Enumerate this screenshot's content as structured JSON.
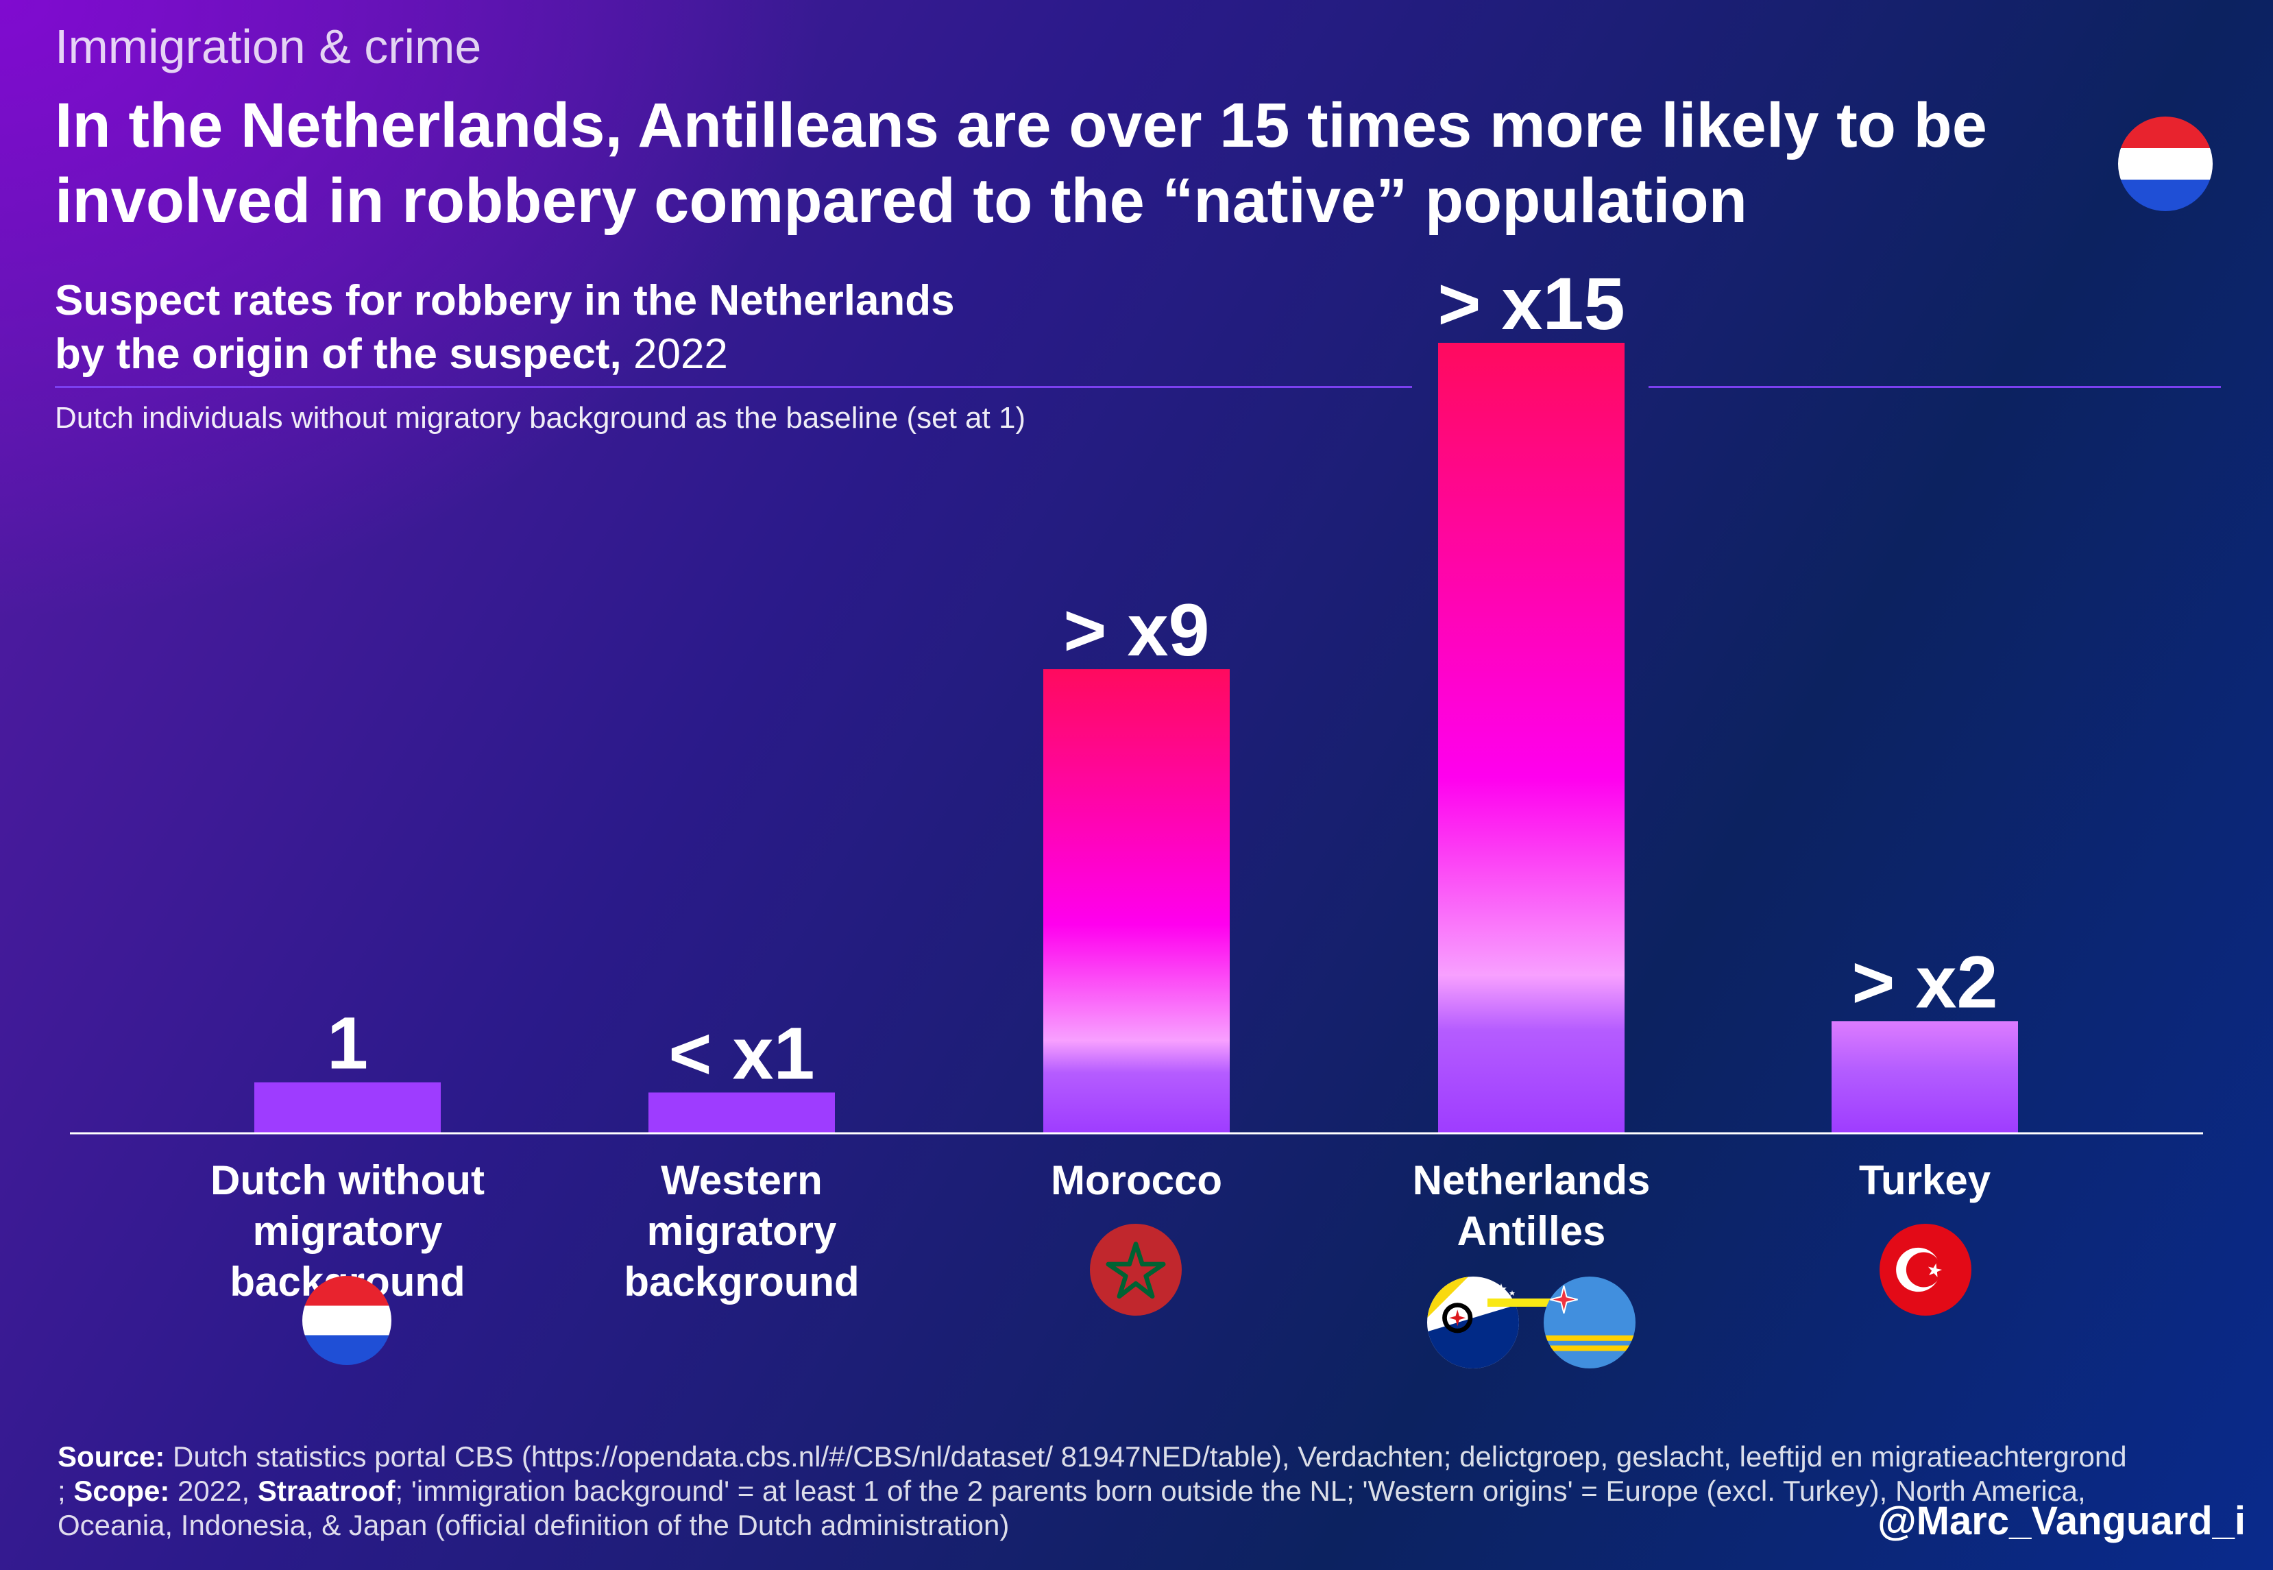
{
  "kicker": "Immigration & crime",
  "headline": {
    "line1": "In the Netherlands, Antilleans are over 15 times more likely to be",
    "line2": "involved in robbery compared to the “native” population"
  },
  "subtitle": {
    "line1": "Suspect rates for robbery in the Netherlands",
    "line2_bold": "by the origin of the suspect,",
    "line2_year": " 2022"
  },
  "baseline_note": "Dutch individuals without migratory background as the baseline (set at 1)",
  "chart_data": {
    "type": "bar",
    "title": "Suspect rates for robbery in the Netherlands by the origin of the suspect, 2022",
    "categories": [
      [
        "Dutch without",
        "migratory background"
      ],
      [
        "Western",
        "migratory",
        "background"
      ],
      [
        "Morocco"
      ],
      [
        "Netherlands",
        "Antilles"
      ],
      [
        "Turkey"
      ]
    ],
    "values": [
      1,
      0.8,
      9.1,
      15.5,
      2.2
    ],
    "value_labels": [
      "1",
      "< x1",
      "> x9",
      "> x15",
      "> x2"
    ],
    "flags": [
      "netherlands-flag",
      "netherlands-flag",
      "morocco-flag",
      "bonaire-flag",
      "turkey-flag"
    ],
    "ylim": [
      0,
      15.5
    ],
    "grid": false,
    "colors": {
      "bar_top": "#ff0a5e",
      "bar_mid": "#ff00ee",
      "bar_bottom": "#9e3cff",
      "axis": "#ffffff"
    }
  },
  "source": {
    "label1": "Source:",
    "text1": " Dutch statistics portal CBS (https://opendata.cbs.nl/#/CBS/nl/dataset/ 81947NED/table), Verdachten; delictgroep, geslacht, leeftijd en migratieachtergrond ; ",
    "label2": "Scope:",
    "text2": " 2022, ",
    "label3": "Straatroof",
    "text3": "; 'immigration background' = at least 1 of the 2 parents born outside the NL; 'Western origins' = Europe (excl. Turkey), North America, Oceania, Indonesia, & Japan (official definition of the Dutch administration)"
  },
  "handle": "@Marc_Vanguard_i"
}
